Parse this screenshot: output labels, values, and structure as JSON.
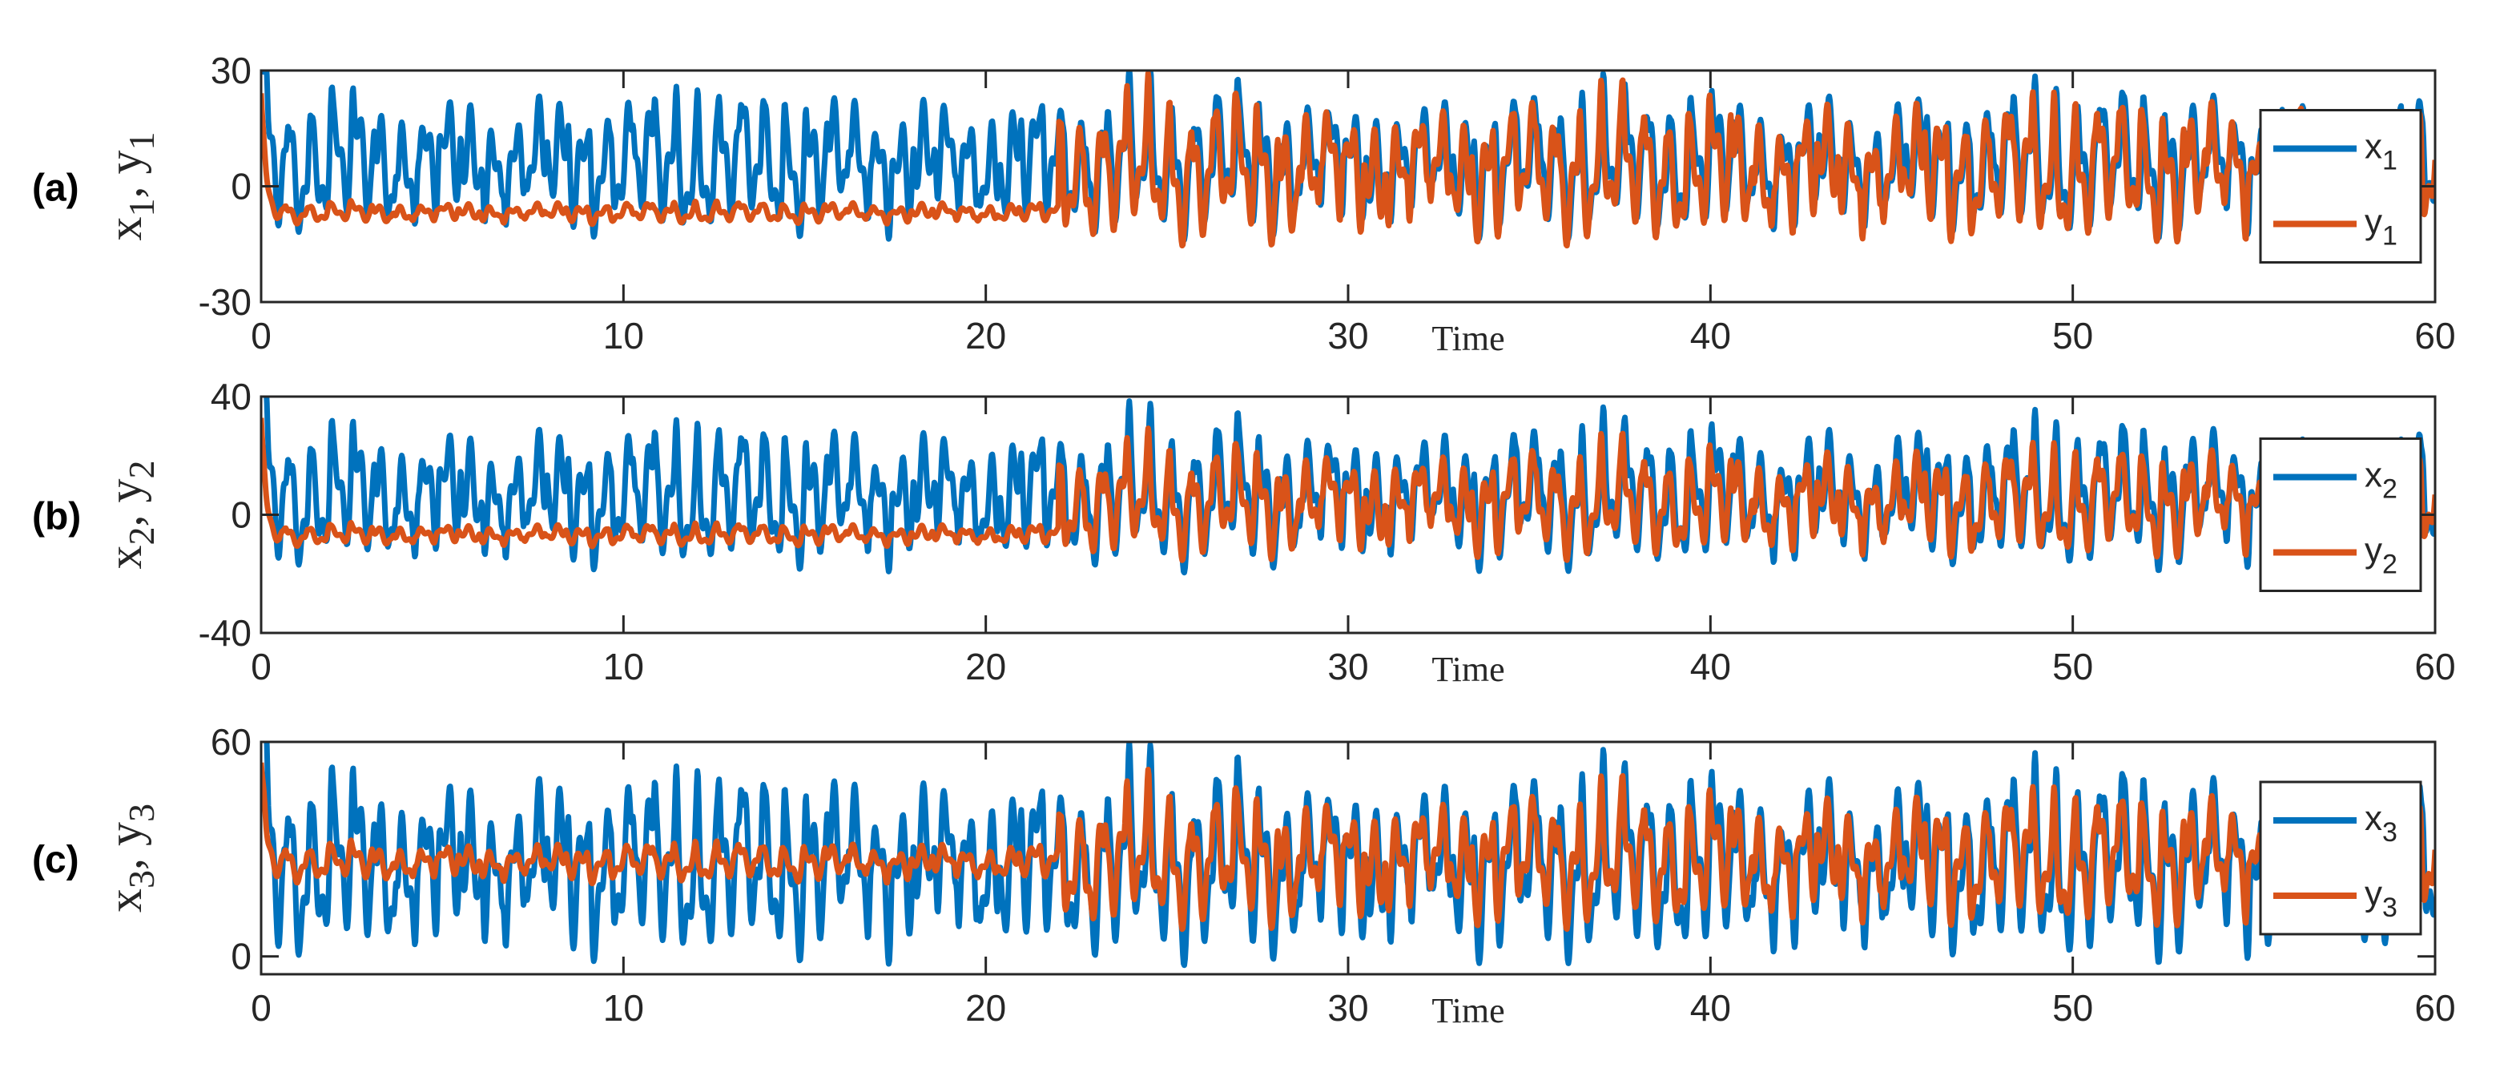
{
  "chart_data": [
    {
      "type": "line",
      "panel_label": "(a)",
      "ylabel": "x1, y1",
      "ylabel_parts": {
        "a": "x",
        "a_sub": "1",
        "sep": ", ",
        "b": "y",
        "b_sub": "1"
      },
      "xlabel": "Time",
      "xlim": [
        0,
        60
      ],
      "ylim": [
        -30,
        30
      ],
      "xticks": [
        0,
        10,
        20,
        30,
        40,
        50,
        60
      ],
      "yticks": [
        -30,
        0,
        30
      ],
      "legend_position": "right",
      "series": [
        {
          "name": "x1",
          "legend_main": "x",
          "legend_sub": "1",
          "color": "#0072BD",
          "baseline": 5,
          "amplitude": 10,
          "spike": 26,
          "freq": 1.6,
          "synced_after": 22
        },
        {
          "name": "y1",
          "legend_main": "y",
          "legend_sub": "1",
          "color": "#D95319",
          "baseline": -7,
          "amplitude": 1.5,
          "spike": 22,
          "freq": 1.6,
          "synced_after": 22
        }
      ]
    },
    {
      "type": "line",
      "panel_label": "(b)",
      "ylabel": "x2, y2",
      "ylabel_parts": {
        "a": "x",
        "a_sub": "2",
        "sep": ", ",
        "b": "y",
        "b_sub": "2"
      },
      "xlabel": "Time",
      "xlim": [
        0,
        60
      ],
      "ylim": [
        -40,
        40
      ],
      "xticks": [
        0,
        10,
        20,
        30,
        40,
        50,
        60
      ],
      "yticks": [
        -40,
        0,
        40
      ],
      "legend_position": "right",
      "series": [
        {
          "name": "x2",
          "legend_main": "x",
          "legend_sub": "2",
          "color": "#0072BD",
          "baseline": 5,
          "amplitude": 13,
          "spike": 40,
          "freq": 1.6,
          "synced_after": 22
        },
        {
          "name": "y2",
          "legend_main": "y",
          "legend_sub": "2",
          "color": "#D95319",
          "baseline": -7,
          "amplitude": 2,
          "spike": 30,
          "freq": 1.6,
          "synced_after": 22
        }
      ]
    },
    {
      "type": "line",
      "panel_label": "(c)",
      "ylabel": "x3, y3",
      "ylabel_parts": {
        "a": "x",
        "a_sub": "3",
        "sep": ", ",
        "b": "y",
        "b_sub": "3"
      },
      "xlabel": "Time",
      "xlim": [
        0,
        60
      ],
      "ylim": [
        -5,
        60
      ],
      "xticks": [
        0,
        10,
        20,
        30,
        40,
        50,
        60
      ],
      "yticks": [
        0,
        60
      ],
      "legend_position": "right",
      "series": [
        {
          "name": "x3",
          "legend_main": "x",
          "legend_sub": "3",
          "color": "#0072BD",
          "baseline": 24,
          "amplitude": 14,
          "spike": 60,
          "freq": 1.6,
          "synced_after": 22
        },
        {
          "name": "y3",
          "legend_main": "y",
          "legend_sub": "3",
          "color": "#D95319",
          "baseline": 26,
          "amplitude": 3,
          "spike": 50,
          "freq": 1.6,
          "synced_after": 22
        }
      ]
    }
  ]
}
